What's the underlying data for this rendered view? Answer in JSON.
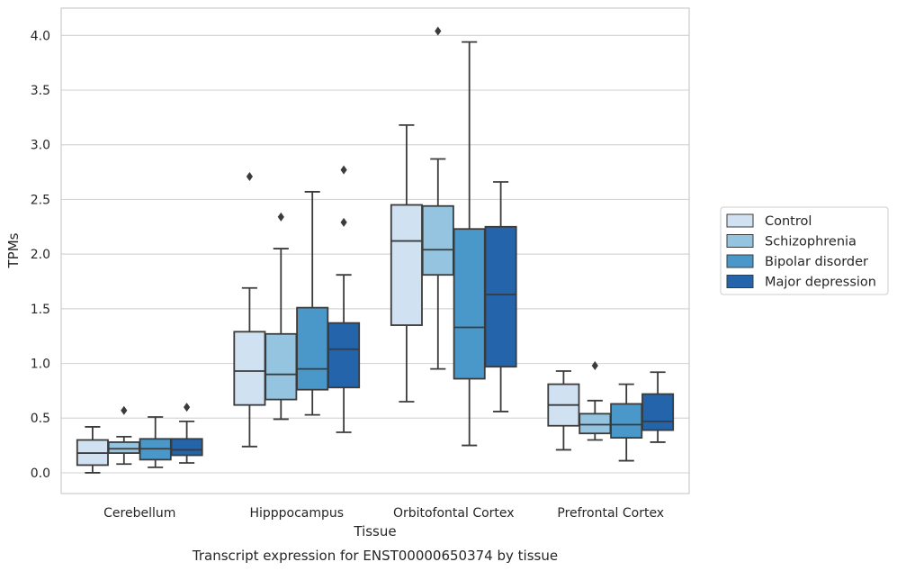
{
  "chart_data": {
    "type": "box",
    "title": "Transcript expression for ENST00000650374 by tissue",
    "xlabel": "Tissue",
    "ylabel": "TPMs",
    "ylim": [
      -0.19,
      4.25
    ],
    "yticks": [
      "0.0",
      "0.5",
      "1.0",
      "1.5",
      "2.0",
      "2.5",
      "3.0",
      "3.5",
      "4.0"
    ],
    "ytick_values": [
      0.0,
      0.5,
      1.0,
      1.5,
      2.0,
      2.5,
      3.0,
      3.5,
      4.0
    ],
    "grid": "horizontal",
    "legend_position": "right",
    "categories": [
      "Cerebellum",
      "Hipppocampus",
      "Orbitofontal Cortex",
      "Prefrontal Cortex"
    ],
    "series": [
      {
        "name": "Control",
        "color": "#d0e1f2",
        "boxes": [
          {
            "min": 0.0,
            "q1": 0.07,
            "median": 0.18,
            "q3": 0.3,
            "max": 0.42,
            "outliers": []
          },
          {
            "min": 0.24,
            "q1": 0.62,
            "median": 0.93,
            "q3": 1.29,
            "max": 1.69,
            "outliers": [
              2.71
            ]
          },
          {
            "min": 0.65,
            "q1": 1.35,
            "median": 2.12,
            "q3": 2.45,
            "max": 3.18,
            "outliers": []
          },
          {
            "min": 0.21,
            "q1": 0.43,
            "median": 0.62,
            "q3": 0.81,
            "max": 0.93,
            "outliers": []
          }
        ]
      },
      {
        "name": "Schizophrenia",
        "color": "#94c4df",
        "boxes": [
          {
            "min": 0.08,
            "q1": 0.18,
            "median": 0.22,
            "q3": 0.28,
            "max": 0.33,
            "outliers": [
              0.57
            ]
          },
          {
            "min": 0.49,
            "q1": 0.67,
            "median": 0.9,
            "q3": 1.27,
            "max": 2.05,
            "outliers": [
              2.34
            ]
          },
          {
            "min": 0.95,
            "q1": 1.81,
            "median": 2.04,
            "q3": 2.44,
            "max": 2.87,
            "outliers": [
              4.04
            ]
          },
          {
            "min": 0.3,
            "q1": 0.36,
            "median": 0.44,
            "q3": 0.54,
            "max": 0.66,
            "outliers": [
              0.98
            ]
          }
        ]
      },
      {
        "name": "Bipolar disorder",
        "color": "#4a98c9",
        "boxes": [
          {
            "min": 0.05,
            "q1": 0.12,
            "median": 0.22,
            "q3": 0.31,
            "max": 0.51,
            "outliers": []
          },
          {
            "min": 0.53,
            "q1": 0.76,
            "median": 0.95,
            "q3": 1.51,
            "max": 2.57,
            "outliers": []
          },
          {
            "min": 0.25,
            "q1": 0.86,
            "median": 1.33,
            "q3": 2.23,
            "max": 3.94,
            "outliers": []
          },
          {
            "min": 0.11,
            "q1": 0.32,
            "median": 0.44,
            "q3": 0.63,
            "max": 0.81,
            "outliers": []
          }
        ]
      },
      {
        "name": "Major depression",
        "color": "#2464aa",
        "boxes": [
          {
            "min": 0.09,
            "q1": 0.16,
            "median": 0.21,
            "q3": 0.31,
            "max": 0.47,
            "outliers": [
              0.6
            ]
          },
          {
            "min": 0.37,
            "q1": 0.78,
            "median": 1.13,
            "q3": 1.37,
            "max": 1.81,
            "outliers": [
              2.29,
              2.77
            ]
          },
          {
            "min": 0.56,
            "q1": 0.97,
            "median": 1.63,
            "q3": 2.25,
            "max": 2.66,
            "outliers": []
          },
          {
            "min": 0.28,
            "q1": 0.39,
            "median": 0.47,
            "q3": 0.72,
            "max": 0.92,
            "outliers": []
          }
        ]
      }
    ]
  }
}
